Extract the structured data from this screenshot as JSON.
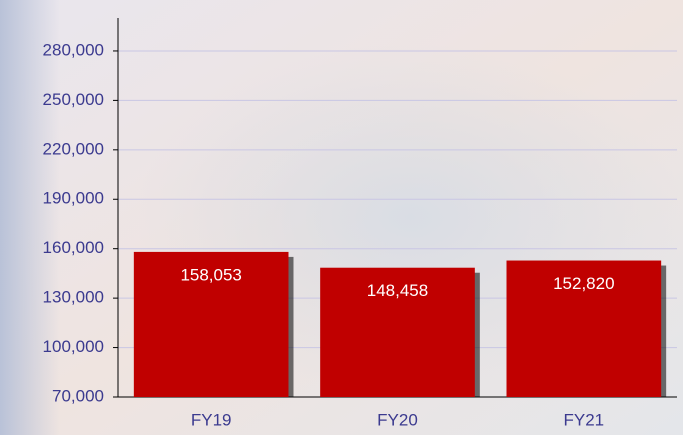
{
  "chart_data": {
    "type": "bar",
    "categories": [
      "FY19",
      "FY20",
      "FY21"
    ],
    "values": [
      158053,
      148458,
      152820
    ],
    "value_labels": [
      "158,053",
      "148,458",
      "152,820"
    ],
    "color": "#c00000",
    "ylim": [
      70000,
      300000
    ],
    "yticks": [
      {
        "value": 70000,
        "label": "70,000"
      },
      {
        "value": 100000,
        "label": "100,000"
      },
      {
        "value": 130000,
        "label": "130,000"
      },
      {
        "value": 160000,
        "label": "160,000"
      },
      {
        "value": 190000,
        "label": "190,000"
      },
      {
        "value": 220000,
        "label": "220,000"
      },
      {
        "value": 250000,
        "label": "250,000"
      },
      {
        "value": 280000,
        "label": "280,000"
      }
    ],
    "grid": true
  }
}
